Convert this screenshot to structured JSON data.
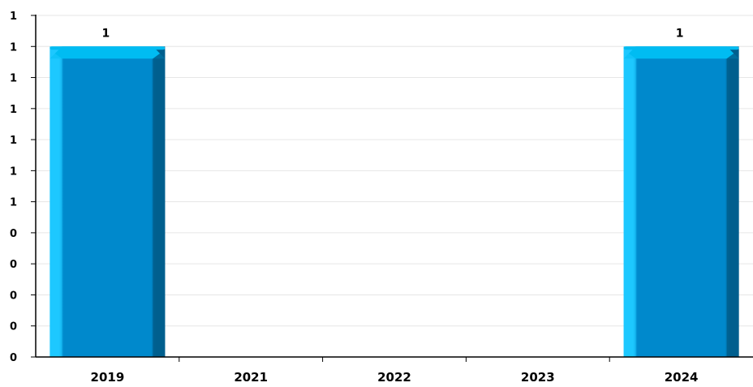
{
  "chart_data": {
    "type": "bar",
    "categories": [
      "2019",
      "2021",
      "2022",
      "2023",
      "2024"
    ],
    "values": [
      1,
      0,
      0,
      0,
      1
    ],
    "data_labels": [
      "1",
      "",
      "",
      "",
      "1"
    ],
    "y_tick_labels": [
      "0",
      "0",
      "0",
      "0",
      "0",
      "1",
      "1",
      "1",
      "1",
      "1",
      "1",
      "1"
    ],
    "ylim": [
      0,
      1.1
    ],
    "grid": true,
    "legend": "none",
    "title": "",
    "xlabel": "",
    "ylabel": "",
    "colors": {
      "bar_face": "#0089cc",
      "bar_light": "#1ec8ff",
      "bar_dark": "#005f8e",
      "bar_top": "#00bcf2",
      "grid": "#e6e6e6",
      "axis": "#000000",
      "text": "#000000"
    }
  }
}
